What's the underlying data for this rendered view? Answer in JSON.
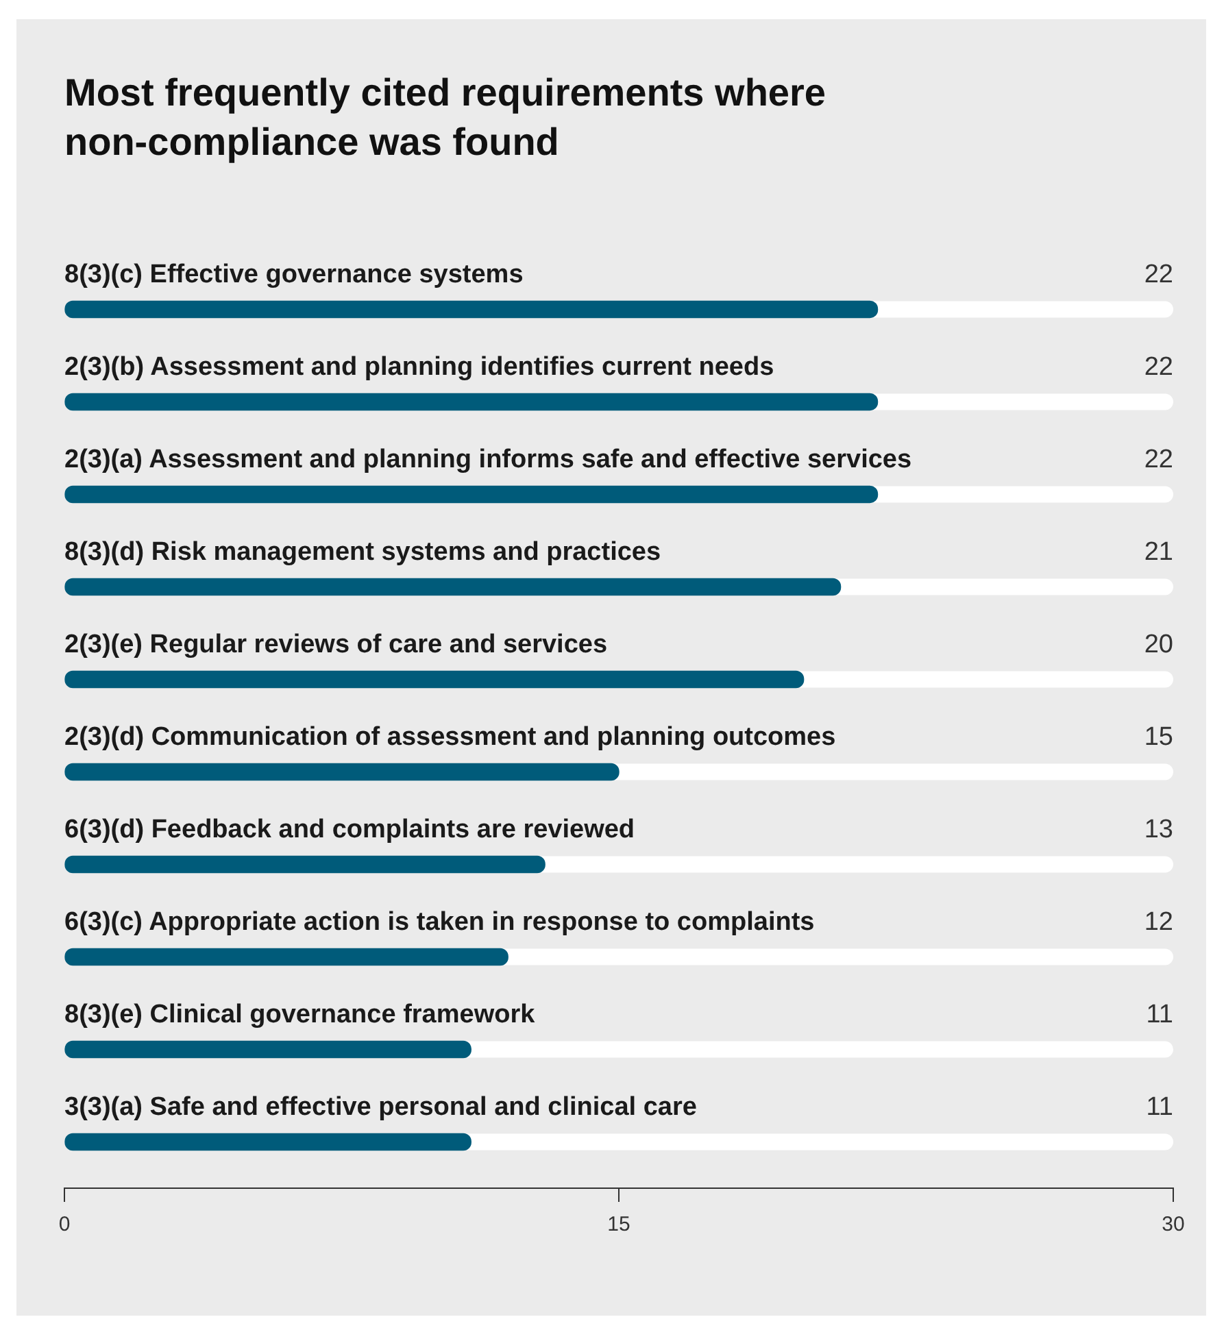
{
  "chart_data": {
    "type": "bar",
    "orientation": "horizontal",
    "title": "Most frequently cited requirements where non-compliance was found",
    "categories": [
      "8(3)(c) Effective governance systems",
      "2(3)(b) Assessment and planning identifies current needs",
      "2(3)(a) Assessment and planning informs safe and effective services",
      "8(3)(d) Risk management systems and practices",
      "2(3)(e) Regular reviews of care and services",
      "2(3)(d) Communication of assessment and planning outcomes",
      "6(3)(d) Feedback and complaints are reviewed",
      "6(3)(c) Appropriate action is taken in response to complaints",
      "8(3)(e) Clinical governance framework",
      "3(3)(a) Safe and effective personal and clinical care"
    ],
    "values": [
      22,
      22,
      22,
      21,
      20,
      15,
      13,
      12,
      11,
      11
    ],
    "color": "#005b7a",
    "xlim": [
      0,
      30
    ],
    "xticks": [
      0,
      15,
      30
    ],
    "grid": false,
    "data_labels": true,
    "legend": false
  }
}
